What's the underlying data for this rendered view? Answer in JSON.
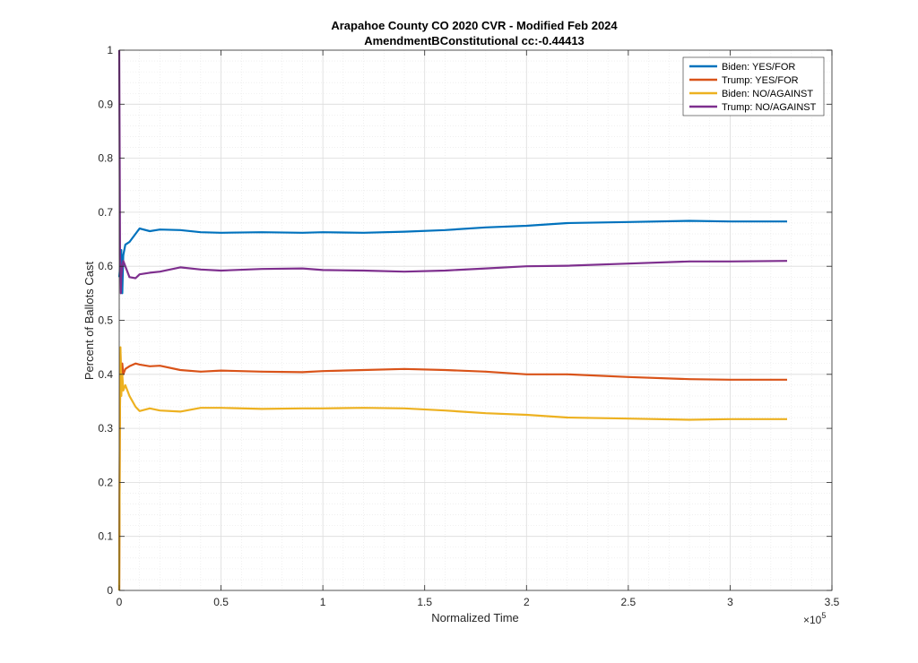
{
  "chart_data": {
    "type": "line",
    "title": "Arapahoe County CO 2020 CVR - Modified Feb 2024",
    "subtitle": "AmendmentBConstitutional cc:-0.44413",
    "xlabel": "Normalized Time",
    "ylabel": "Percent of Ballots Cast",
    "x_exponent_label": "×10",
    "x_exponent_power": "5",
    "xlim": [
      0,
      3.5
    ],
    "ylim": [
      0,
      1
    ],
    "xticks": [
      0,
      0.5,
      1,
      1.5,
      2,
      2.5,
      3,
      3.5
    ],
    "xtick_labels": [
      "0",
      "0.5",
      "1",
      "1.5",
      "2",
      "2.5",
      "3",
      "3.5"
    ],
    "yticks": [
      0,
      0.1,
      0.2,
      0.3,
      0.4,
      0.5,
      0.6,
      0.7,
      0.8,
      0.9,
      1
    ],
    "ytick_labels": [
      "0",
      "0.1",
      "0.2",
      "0.3",
      "0.4",
      "0.5",
      "0.6",
      "0.7",
      "0.8",
      "0.9",
      "1"
    ],
    "grid": true,
    "minor_grid": true,
    "legend_position": "top-right",
    "series": [
      {
        "name": "Biden: YES/FOR",
        "color": "#0072BD",
        "x": [
          0,
          0.005,
          0.01,
          0.015,
          0.02,
          0.03,
          0.05,
          0.08,
          0.1,
          0.15,
          0.2,
          0.3,
          0.4,
          0.5,
          0.7,
          0.9,
          1.0,
          1.2,
          1.4,
          1.6,
          1.8,
          2.0,
          2.2,
          2.5,
          2.8,
          3.0,
          3.28
        ],
        "y": [
          0.58,
          0.6,
          0.63,
          0.55,
          0.62,
          0.64,
          0.645,
          0.66,
          0.67,
          0.665,
          0.668,
          0.667,
          0.663,
          0.662,
          0.663,
          0.662,
          0.663,
          0.662,
          0.664,
          0.667,
          0.672,
          0.675,
          0.68,
          0.682,
          0.684,
          0.683,
          0.683
        ]
      },
      {
        "name": "Trump: YES/FOR",
        "color": "#D95319",
        "x": [
          0,
          0.003,
          0.006,
          0.01,
          0.015,
          0.02,
          0.03,
          0.05,
          0.08,
          0.1,
          0.15,
          0.2,
          0.3,
          0.4,
          0.5,
          0.7,
          0.9,
          1.0,
          1.2,
          1.4,
          1.6,
          1.8,
          2.0,
          2.2,
          2.5,
          2.8,
          3.0,
          3.28
        ],
        "y": [
          0.0,
          0.3,
          0.44,
          0.38,
          0.42,
          0.4,
          0.41,
          0.415,
          0.42,
          0.418,
          0.415,
          0.416,
          0.408,
          0.405,
          0.407,
          0.405,
          0.404,
          0.406,
          0.408,
          0.41,
          0.408,
          0.405,
          0.4,
          0.4,
          0.395,
          0.391,
          0.39,
          0.39
        ]
      },
      {
        "name": "Biden: NO/AGAINST",
        "color": "#EDB120",
        "x": [
          0,
          0.003,
          0.006,
          0.01,
          0.015,
          0.02,
          0.03,
          0.05,
          0.08,
          0.1,
          0.15,
          0.2,
          0.3,
          0.4,
          0.5,
          0.7,
          0.9,
          1.0,
          1.2,
          1.4,
          1.6,
          1.8,
          2.0,
          2.2,
          2.5,
          2.8,
          3.0,
          3.28
        ],
        "y": [
          0.0,
          0.3,
          0.45,
          0.36,
          0.4,
          0.37,
          0.38,
          0.36,
          0.34,
          0.332,
          0.337,
          0.333,
          0.331,
          0.338,
          0.338,
          0.336,
          0.337,
          0.337,
          0.338,
          0.337,
          0.333,
          0.328,
          0.325,
          0.32,
          0.318,
          0.316,
          0.317,
          0.317
        ]
      },
      {
        "name": "Trump: NO/AGAINST",
        "color": "#7E2F8E",
        "x": [
          0,
          0.002,
          0.004,
          0.006,
          0.008,
          0.01,
          0.015,
          0.02,
          0.03,
          0.05,
          0.08,
          0.1,
          0.15,
          0.2,
          0.3,
          0.4,
          0.5,
          0.7,
          0.9,
          1.0,
          1.2,
          1.4,
          1.6,
          1.8,
          2.0,
          2.2,
          2.5,
          2.8,
          3.0,
          3.28
        ],
        "y": [
          1.0,
          0.8,
          0.62,
          0.6,
          0.55,
          0.58,
          0.6,
          0.61,
          0.6,
          0.58,
          0.578,
          0.585,
          0.588,
          0.59,
          0.598,
          0.594,
          0.592,
          0.595,
          0.596,
          0.593,
          0.592,
          0.59,
          0.592,
          0.596,
          0.6,
          0.601,
          0.605,
          0.609,
          0.609,
          0.61
        ]
      }
    ]
  }
}
